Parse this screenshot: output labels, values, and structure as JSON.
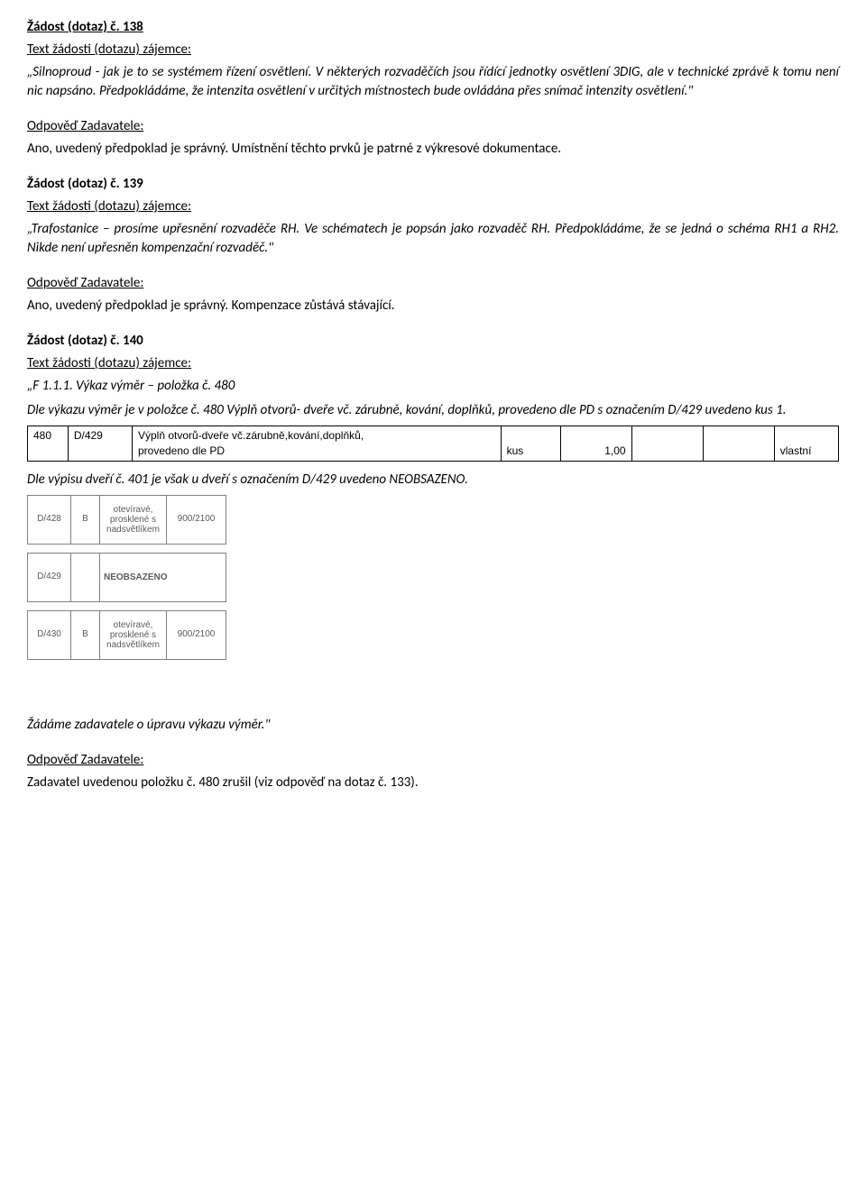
{
  "q138": {
    "title": "Žádost (dotaz) č. 138",
    "sub": "Text žádosti (dotazu) zájemce:",
    "text": "„Silnoproud - jak je to se systémem řízení osvětlení. V některých rozvaděčích jsou řídící jednotky osvětlení 3DIG, ale v technické zprávě k tomu není nic napsáno. Předpokládáme, že intenzita osvětlení v určitých místnostech bude ovládána přes snímač intenzity osvětlení.\"",
    "ans_label": "Odpověď Zadavatele:",
    "ans": "Ano, uvedený předpoklad je správný. Umístnění těchto prvků je patrné z výkresové dokumentace."
  },
  "q139": {
    "title": "Žádost (dotaz) č. 139",
    "sub": "Text žádosti (dotazu) zájemce:",
    "text": "„Trafostanice – prosíme upřesnění rozvaděče RH. Ve schématech je popsán jako rozvaděč RH. Předpokládáme, že se jedná o schéma RH1 a RH2. Nikde není upřesněn kompenzační rozvaděč.\"",
    "ans_label": "Odpověď Zadavatele:",
    "ans": "Ano, uvedený předpoklad je správný. Kompenzace zůstává stávající."
  },
  "q140": {
    "title": "Žádost (dotaz) č. 140",
    "sub": "Text žádosti (dotazu) zájemce:",
    "line1": "„F 1.1.1. Výkaz výměr – položka č. 480",
    "line2": "Dle výkazu výměr je v položce č. 480 Výplň otvorů- dveře vč. zárubně, kování, doplňků, provedeno dle PD s označením D/429 uvedeno kus 1.",
    "wide_row": {
      "c0": "480",
      "c1": "D/429",
      "c2a": "Výplň otvorů-dveře vč.zárubně,kování,doplňků,",
      "c2b": "provedeno dle PD",
      "c3": "kus",
      "c4": "1,00",
      "c7": "vlastní"
    },
    "line3": "Dle výpisu dveří č. 401 je však u dveří s označením D/429 uvedeno NEOBSAZENO.",
    "small_rows": [
      {
        "a": "D/428",
        "b": "B",
        "c": "otevíravé,\nprosklené s\nnadsvětlíkem",
        "d": "900/2100"
      },
      {
        "a": "D/429",
        "b": "",
        "c": "NEOBSAZENO",
        "d": ""
      },
      {
        "a": "D/430",
        "b": "B",
        "c": "otevíravé,\nprosklené s\nnadsvětlíkem",
        "d": "900/2100"
      }
    ],
    "line4": "Žádáme zadavatele o úpravu výkazu výměr.\"",
    "ans_label": "Odpověď Zadavatele:",
    "ans": "Zadavatel uvedenou položku č. 480 zrušil (viz odpověď na dotaz č. 133)."
  }
}
